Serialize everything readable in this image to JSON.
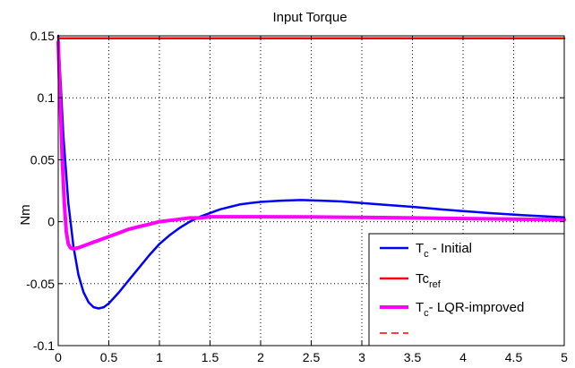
{
  "chart_data": {
    "type": "line",
    "title": "Input Torque",
    "xlabel": "",
    "ylabel": "Nm",
    "xlim": [
      0,
      5
    ],
    "ylim": [
      -0.1,
      0.15
    ],
    "xticks": [
      "0",
      "0.5",
      "1",
      "1.5",
      "2",
      "2.5",
      "3",
      "3.5",
      "4",
      "4.5",
      "5"
    ],
    "yticks": [
      "0.15",
      "0.1",
      "0.05",
      "0",
      "-0.05",
      "-0.1"
    ],
    "xtick_values": [
      0,
      0.5,
      1,
      1.5,
      2,
      2.5,
      3,
      3.5,
      4,
      4.5,
      5
    ],
    "ytick_values": [
      0.15,
      0.1,
      0.05,
      0,
      -0.05,
      -0.1
    ],
    "grid": true,
    "legend_position": "bottom-right",
    "series": [
      {
        "name_main": "T",
        "name_sub": "c",
        "name_rest": " - Initial",
        "color": "#0000ff",
        "style": "solid",
        "x": [
          0,
          0.05,
          0.1,
          0.15,
          0.2,
          0.25,
          0.3,
          0.35,
          0.4,
          0.45,
          0.5,
          0.6,
          0.7,
          0.8,
          0.9,
          1.0,
          1.1,
          1.2,
          1.3,
          1.4,
          1.5,
          1.6,
          1.7,
          1.8,
          1.9,
          2.0,
          2.2,
          2.4,
          2.6,
          2.8,
          3.0,
          3.2,
          3.5,
          3.8,
          4.0,
          4.3,
          4.6,
          5.0
        ],
        "y": [
          0.15,
          0.07,
          0.015,
          -0.02,
          -0.043,
          -0.057,
          -0.065,
          -0.069,
          -0.07,
          -0.069,
          -0.066,
          -0.057,
          -0.047,
          -0.037,
          -0.027,
          -0.018,
          -0.011,
          -0.005,
          0.0,
          0.004,
          0.007,
          0.01,
          0.012,
          0.014,
          0.015,
          0.016,
          0.017,
          0.0175,
          0.017,
          0.0163,
          0.015,
          0.0138,
          0.012,
          0.0098,
          0.0085,
          0.0068,
          0.0052,
          0.0035
        ]
      },
      {
        "name_main": "Tc",
        "name_sub": "ref",
        "name_rest": "",
        "color": "#ff0000",
        "style": "solid",
        "x": [
          0,
          5
        ],
        "y": [
          0.148,
          0.148
        ]
      },
      {
        "name_main": "T",
        "name_sub": "c",
        "name_rest": "- LQR-improved",
        "color": "#ff00ff",
        "style": "solid-thick",
        "x": [
          0,
          0.02,
          0.04,
          0.06,
          0.08,
          0.1,
          0.12,
          0.15,
          0.2,
          0.3,
          0.4,
          0.5,
          0.6,
          0.7,
          0.8,
          0.9,
          1.0,
          1.1,
          1.2,
          1.3,
          1.4,
          1.5,
          1.7,
          2.0,
          2.5,
          3.0,
          3.5,
          4.0,
          4.5,
          5.0
        ],
        "y": [
          0.145,
          0.095,
          0.05,
          0.015,
          -0.008,
          -0.018,
          -0.021,
          -0.022,
          -0.021,
          -0.018,
          -0.015,
          -0.012,
          -0.009,
          -0.006,
          -0.004,
          -0.002,
          0.0,
          0.001,
          0.002,
          0.003,
          0.003,
          0.004,
          0.004,
          0.004,
          0.0038,
          0.0035,
          0.003,
          0.0025,
          0.002,
          0.0015
        ]
      },
      {
        "name_main": "",
        "name_sub": "",
        "name_rest": "",
        "color": "#ff0000",
        "style": "dashed",
        "x": [],
        "y": []
      }
    ]
  }
}
